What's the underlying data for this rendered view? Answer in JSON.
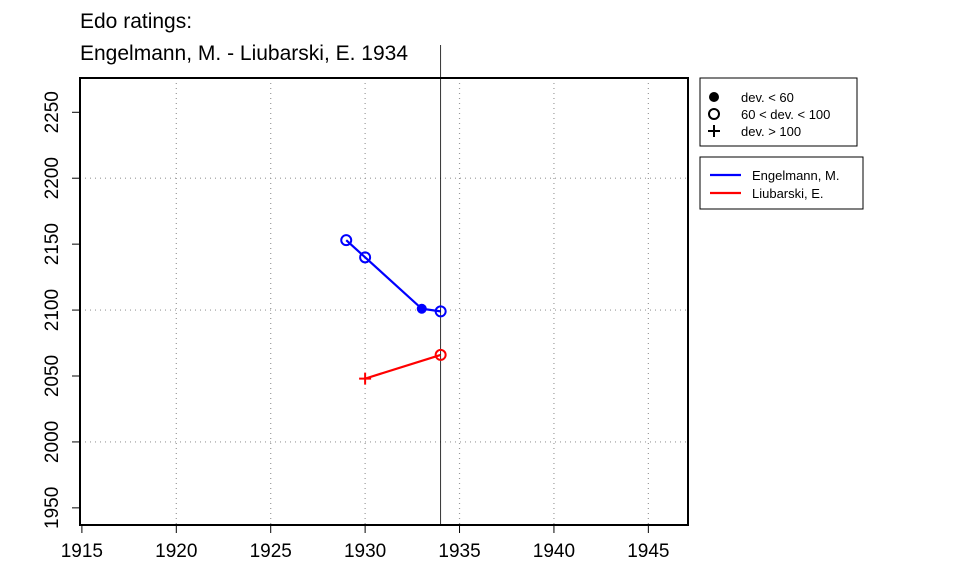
{
  "chart_data": {
    "type": "line",
    "title": "Edo ratings:",
    "subtitle": "Engelmann, M. - Liubarski, E. 1934",
    "series": [
      {
        "name": "Engelmann, M.",
        "color": "#0000ff",
        "x": [
          1929,
          1930,
          1933,
          1934
        ],
        "values": [
          2153,
          2140,
          2101,
          2099
        ],
        "markers": [
          "open",
          "open",
          "filled",
          "open"
        ]
      },
      {
        "name": "Liubarski, E.",
        "color": "#ff0000",
        "x": [
          1930,
          1934
        ],
        "values": [
          2048,
          2066
        ],
        "markers": [
          "plus",
          "open"
        ]
      }
    ],
    "marker_legend": [
      {
        "label": "dev. < 60",
        "marker": "filled"
      },
      {
        "label": "60 < dev. < 100",
        "marker": "open"
      },
      {
        "label": "dev. > 100",
        "marker": "plus"
      }
    ],
    "vline": 1934,
    "xlim": [
      1914.9,
      1947.1
    ],
    "xticks": [
      1915,
      1920,
      1925,
      1930,
      1935,
      1940,
      1945
    ],
    "ylim": [
      1937,
      2276
    ],
    "yticks": [
      1950,
      2000,
      2050,
      2100,
      2150,
      2200,
      2250
    ],
    "xgrid": [
      1920,
      1925,
      1930,
      1935,
      1940,
      1945
    ],
    "ygrid": [
      2000,
      2100,
      2200
    ]
  }
}
